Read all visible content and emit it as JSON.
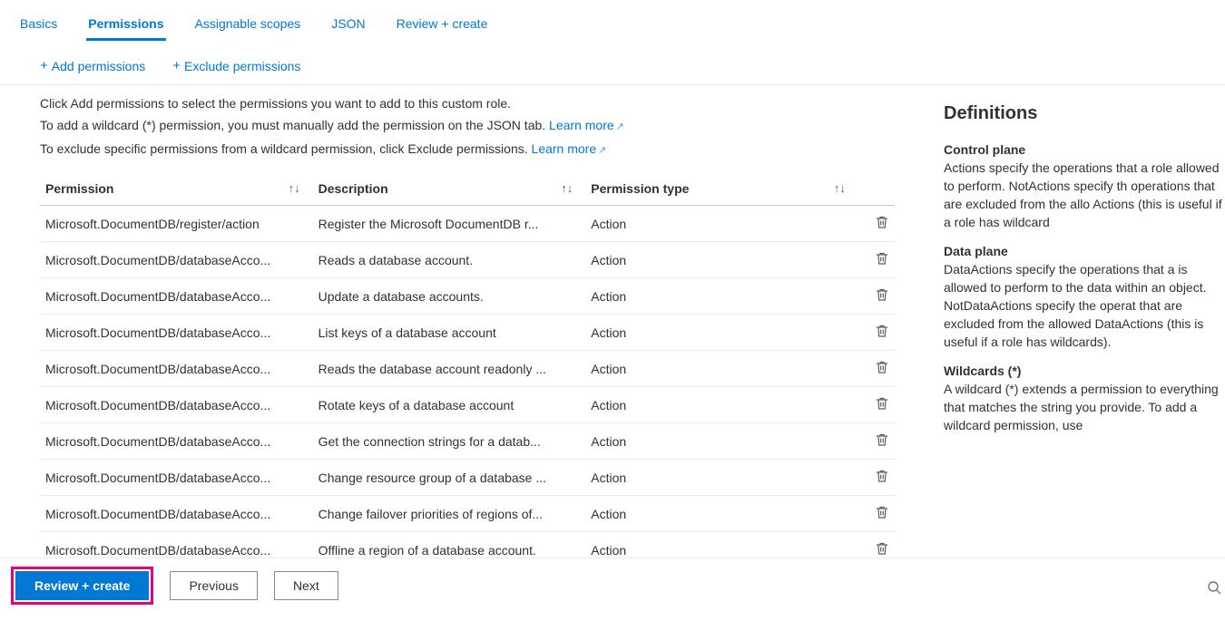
{
  "tabs": [
    {
      "label": "Basics",
      "active": false
    },
    {
      "label": "Permissions",
      "active": true
    },
    {
      "label": "Assignable scopes",
      "active": false
    },
    {
      "label": "JSON",
      "active": false
    },
    {
      "label": "Review + create",
      "active": false
    }
  ],
  "toolbar": {
    "add_label": "Add permissions",
    "exclude_label": "Exclude permissions"
  },
  "intro": {
    "line1": "Click Add permissions to select the permissions you want to add to this custom role.",
    "line2_pre": "To add a wildcard (*) permission, you must manually add the permission on the JSON tab. ",
    "line2_link": "Learn more",
    "line3_pre": "To exclude specific permissions from a wildcard permission, click Exclude permissions. ",
    "line3_link": "Learn more"
  },
  "columns": {
    "permission": "Permission",
    "description": "Description",
    "type": "Permission type"
  },
  "rows": [
    {
      "perm": "Microsoft.DocumentDB/register/action",
      "desc": "Register the Microsoft DocumentDB r...",
      "type": "Action"
    },
    {
      "perm": "Microsoft.DocumentDB/databaseAcco...",
      "desc": "Reads a database account.",
      "type": "Action"
    },
    {
      "perm": "Microsoft.DocumentDB/databaseAcco...",
      "desc": "Update a database accounts.",
      "type": "Action"
    },
    {
      "perm": "Microsoft.DocumentDB/databaseAcco...",
      "desc": "List keys of a database account",
      "type": "Action"
    },
    {
      "perm": "Microsoft.DocumentDB/databaseAcco...",
      "desc": "Reads the database account readonly ...",
      "type": "Action"
    },
    {
      "perm": "Microsoft.DocumentDB/databaseAcco...",
      "desc": "Rotate keys of a database account",
      "type": "Action"
    },
    {
      "perm": "Microsoft.DocumentDB/databaseAcco...",
      "desc": "Get the connection strings for a datab...",
      "type": "Action"
    },
    {
      "perm": "Microsoft.DocumentDB/databaseAcco...",
      "desc": "Change resource group of a database ...",
      "type": "Action"
    },
    {
      "perm": "Microsoft.DocumentDB/databaseAcco...",
      "desc": "Change failover priorities of regions of...",
      "type": "Action"
    },
    {
      "perm": "Microsoft.DocumentDB/databaseAcco...",
      "desc": "Offline a region of a database account.",
      "type": "Action"
    }
  ],
  "definitions": {
    "heading": "Definitions",
    "sections": [
      {
        "title": "Control plane",
        "body": "Actions specify the operations that a role allowed to perform. NotActions specify th operations that are excluded from the allo Actions (this is useful if a role has wildcard"
      },
      {
        "title": "Data plane",
        "body": "DataActions specify the operations that a is allowed to perform to the data within an object. NotDataActions specify the operat that are excluded from the allowed DataActions (this is useful if a role has wildcards)."
      },
      {
        "title": "Wildcards (*)",
        "body": "A wildcard (*) extends a permission to everything that matches the string you provide. To add a wildcard permission, use"
      }
    ]
  },
  "footer": {
    "review": "Review + create",
    "previous": "Previous",
    "next": "Next"
  },
  "colors": {
    "link": "#0078d4",
    "text": "#323130",
    "highlight": "#e3008c"
  }
}
